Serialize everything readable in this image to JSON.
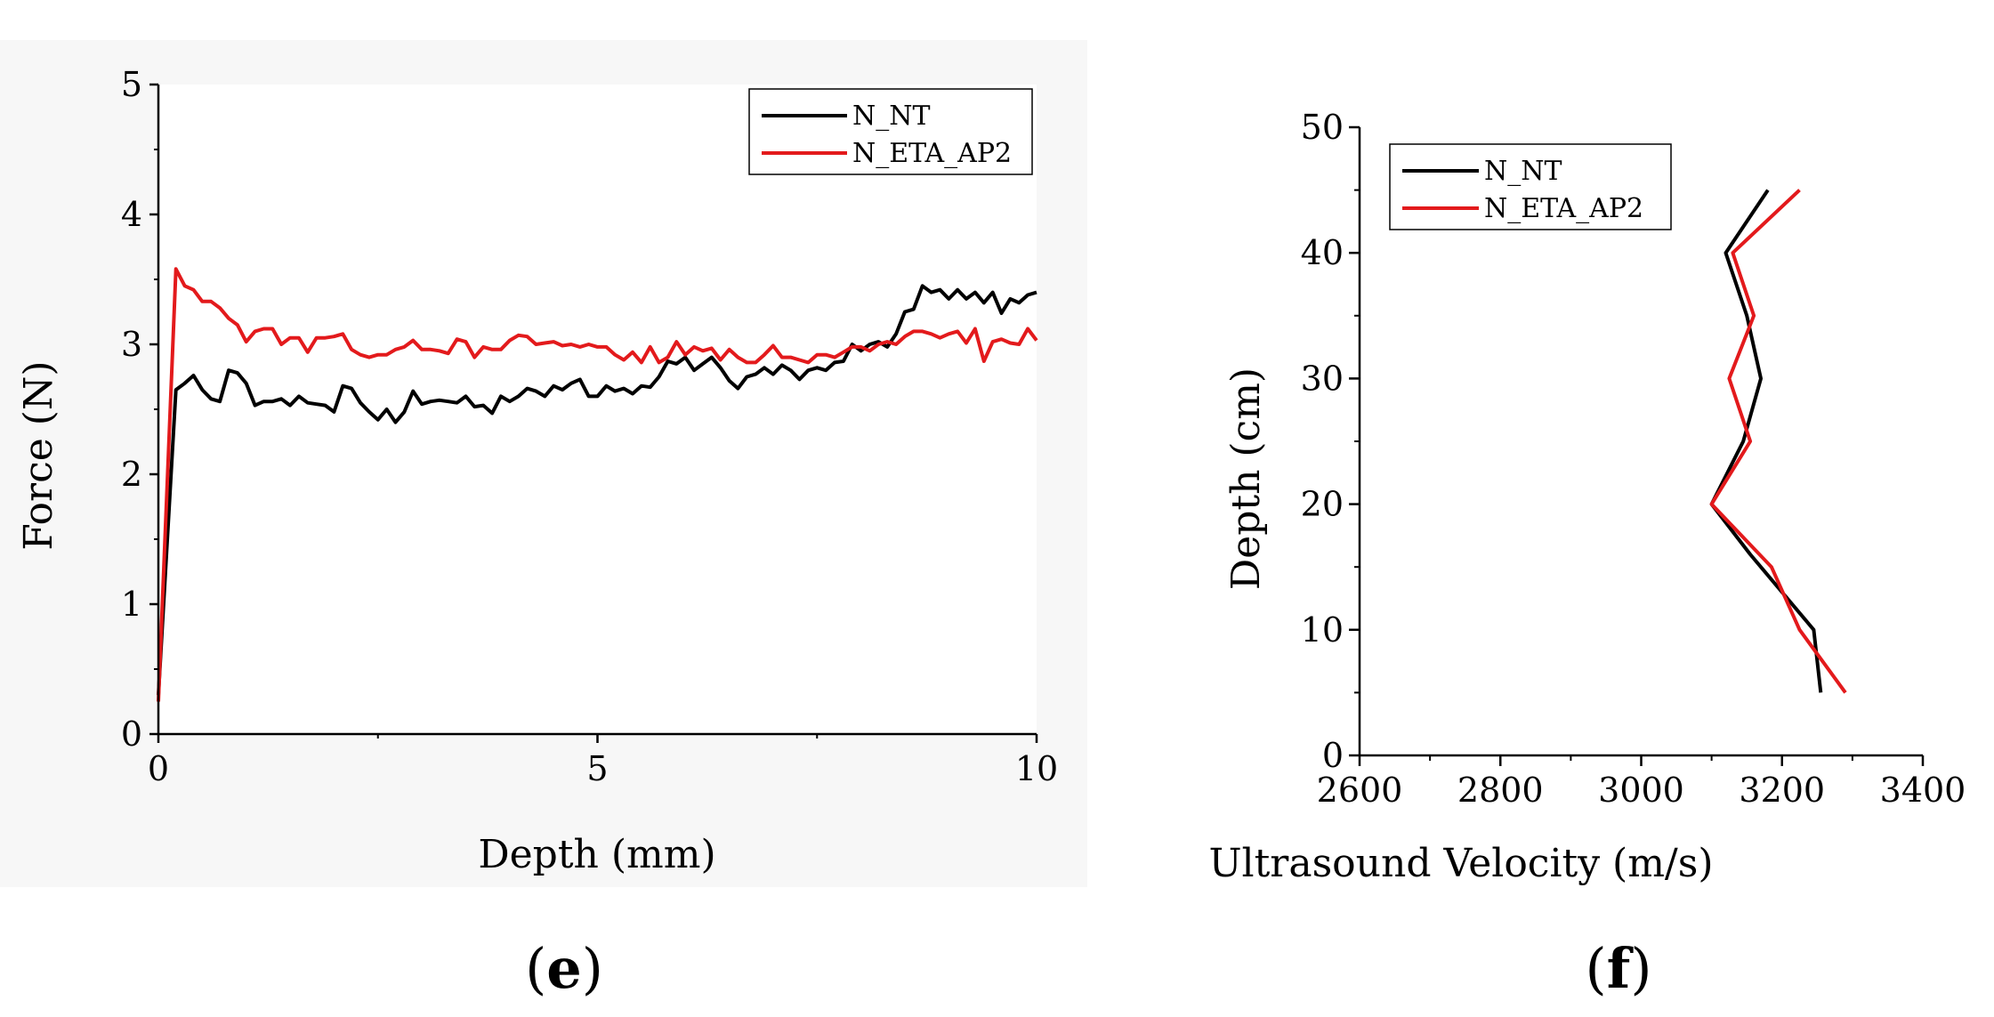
{
  "figure": {
    "panel_labels": [
      {
        "open": "(",
        "letter": "e",
        "close": ")"
      },
      {
        "open": "(",
        "letter": "f",
        "close": ")"
      }
    ],
    "colors": {
      "N_NT": "#000000",
      "N_ETA_AP2": "#e31a1c",
      "panel_background": "#f7f7f7"
    }
  },
  "chart_data": [
    {
      "type": "line",
      "panel": "e",
      "title": "",
      "xlabel": "Depth (mm)",
      "ylabel": "Force (N)",
      "xlim": [
        0,
        10
      ],
      "ylim": [
        0,
        5
      ],
      "xticks": [
        0,
        5,
        10
      ],
      "yticks": [
        0,
        1,
        2,
        3,
        4,
        5
      ],
      "legend_position": "top-right",
      "grid": false,
      "series": [
        {
          "name": "N_NT",
          "color": "#000000",
          "x": [
            0,
            0.2,
            0.3,
            0.4,
            0.5,
            0.6,
            0.7,
            0.8,
            0.9,
            1.0,
            1.1,
            1.2,
            1.3,
            1.4,
            1.5,
            1.6,
            1.7,
            1.8,
            1.9,
            2.0,
            2.1,
            2.2,
            2.3,
            2.4,
            2.5,
            2.6,
            2.7,
            2.8,
            2.9,
            3.0,
            3.1,
            3.2,
            3.3,
            3.4,
            3.5,
            3.6,
            3.7,
            3.8,
            3.9,
            4.0,
            4.1,
            4.2,
            4.3,
            4.4,
            4.5,
            4.6,
            4.7,
            4.8,
            4.9,
            5.0,
            5.1,
            5.2,
            5.3,
            5.4,
            5.5,
            5.6,
            5.7,
            5.8,
            5.9,
            6.0,
            6.1,
            6.2,
            6.3,
            6.4,
            6.5,
            6.6,
            6.7,
            6.8,
            6.9,
            7.0,
            7.1,
            7.2,
            7.3,
            7.4,
            7.5,
            7.6,
            7.7,
            7.8,
            7.9,
            8.0,
            8.1,
            8.2,
            8.3,
            8.4,
            8.5,
            8.6,
            8.7,
            8.8,
            8.9,
            9.0,
            9.1,
            9.2,
            9.3,
            9.4,
            9.5,
            9.6,
            9.7,
            9.8,
            9.9,
            10.0
          ],
          "values": [
            0.3,
            2.65,
            2.7,
            2.76,
            2.65,
            2.58,
            2.56,
            2.8,
            2.78,
            2.7,
            2.53,
            2.56,
            2.56,
            2.58,
            2.53,
            2.6,
            2.55,
            2.54,
            2.53,
            2.48,
            2.68,
            2.66,
            2.55,
            2.48,
            2.42,
            2.5,
            2.4,
            2.48,
            2.64,
            2.54,
            2.56,
            2.57,
            2.56,
            2.55,
            2.6,
            2.52,
            2.53,
            2.47,
            2.6,
            2.56,
            2.6,
            2.66,
            2.64,
            2.6,
            2.68,
            2.65,
            2.7,
            2.73,
            2.6,
            2.6,
            2.68,
            2.64,
            2.66,
            2.62,
            2.68,
            2.67,
            2.75,
            2.87,
            2.85,
            2.9,
            2.8,
            2.85,
            2.9,
            2.82,
            2.72,
            2.66,
            2.75,
            2.77,
            2.82,
            2.77,
            2.84,
            2.8,
            2.73,
            2.8,
            2.82,
            2.8,
            2.86,
            2.87,
            3.0,
            2.95,
            3.0,
            3.02,
            2.98,
            3.08,
            3.25,
            3.27,
            3.45,
            3.4,
            3.42,
            3.35,
            3.42,
            3.35,
            3.4,
            3.32,
            3.4,
            3.24,
            3.35,
            3.32,
            3.38,
            3.4
          ]
        },
        {
          "name": "N_ETA_AP2",
          "color": "#e31a1c",
          "x": [
            0,
            0.2,
            0.3,
            0.4,
            0.5,
            0.6,
            0.7,
            0.8,
            0.9,
            1.0,
            1.1,
            1.2,
            1.3,
            1.4,
            1.5,
            1.6,
            1.7,
            1.8,
            1.9,
            2.0,
            2.1,
            2.2,
            2.3,
            2.4,
            2.5,
            2.6,
            2.7,
            2.8,
            2.9,
            3.0,
            3.1,
            3.2,
            3.3,
            3.4,
            3.5,
            3.6,
            3.7,
            3.8,
            3.9,
            4.0,
            4.1,
            4.2,
            4.3,
            4.4,
            4.5,
            4.6,
            4.7,
            4.8,
            4.9,
            5.0,
            5.1,
            5.2,
            5.3,
            5.4,
            5.5,
            5.6,
            5.7,
            5.8,
            5.9,
            6.0,
            6.1,
            6.2,
            6.3,
            6.4,
            6.5,
            6.6,
            6.7,
            6.8,
            6.9,
            7.0,
            7.1,
            7.2,
            7.3,
            7.4,
            7.5,
            7.6,
            7.7,
            7.8,
            7.9,
            8.0,
            8.1,
            8.2,
            8.3,
            8.4,
            8.5,
            8.6,
            8.7,
            8.8,
            8.9,
            9.0,
            9.1,
            9.2,
            9.3,
            9.4,
            9.5,
            9.6,
            9.7,
            9.8,
            9.9,
            10.0
          ],
          "values": [
            0.25,
            3.58,
            3.45,
            3.42,
            3.33,
            3.33,
            3.28,
            3.2,
            3.15,
            3.02,
            3.1,
            3.12,
            3.12,
            3.0,
            3.05,
            3.05,
            2.94,
            3.05,
            3.05,
            3.06,
            3.08,
            2.96,
            2.92,
            2.9,
            2.92,
            2.92,
            2.96,
            2.98,
            3.03,
            2.96,
            2.96,
            2.95,
            2.93,
            3.04,
            3.02,
            2.9,
            2.98,
            2.96,
            2.96,
            3.03,
            3.07,
            3.06,
            3.0,
            3.01,
            3.02,
            2.99,
            3.0,
            2.98,
            3.0,
            2.98,
            2.98,
            2.92,
            2.88,
            2.94,
            2.86,
            2.98,
            2.86,
            2.9,
            3.02,
            2.92,
            2.98,
            2.95,
            2.97,
            2.88,
            2.96,
            2.9,
            2.86,
            2.86,
            2.92,
            2.99,
            2.9,
            2.9,
            2.88,
            2.86,
            2.92,
            2.92,
            2.9,
            2.94,
            2.98,
            2.98,
            2.95,
            3.0,
            3.02,
            3.0,
            3.06,
            3.1,
            3.1,
            3.08,
            3.05,
            3.08,
            3.1,
            3.01,
            3.12,
            2.87,
            3.02,
            3.04,
            3.01,
            3.0,
            3.12,
            3.03
          ]
        }
      ]
    },
    {
      "type": "line",
      "panel": "f",
      "title": "",
      "xlabel": "Ultrasound Velocity (m/s)",
      "ylabel": "Depth (cm)",
      "xlim": [
        2600,
        3400
      ],
      "ylim": [
        0,
        50
      ],
      "xticks": [
        2600,
        2800,
        3000,
        3200,
        3400
      ],
      "yticks": [
        0,
        10,
        20,
        30,
        40,
        50
      ],
      "legend_position": "top-left",
      "grid": false,
      "series": [
        {
          "name": "N_NT",
          "color": "#000000",
          "x": [
            3255,
            3245,
            3215,
            3155,
            3100,
            3145,
            3170,
            3150,
            3120,
            3180
          ],
          "values": [
            5,
            10,
            12,
            16,
            20,
            25,
            30,
            35,
            40,
            45
          ]
        },
        {
          "name": "N_ETA_AP2",
          "color": "#e31a1c",
          "x": [
            3290,
            3225,
            3185,
            3100,
            3155,
            3125,
            3160,
            3130,
            3225
          ],
          "values": [
            5,
            10,
            15,
            20,
            25,
            30,
            35,
            40,
            45
          ]
        }
      ]
    }
  ]
}
